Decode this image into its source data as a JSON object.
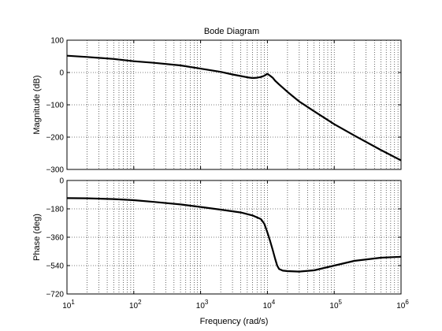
{
  "chart_data": {
    "type": "line",
    "title": "Bode Diagram",
    "xlabel": "Frequency  (rad/s)",
    "xscale": "log",
    "xlim": [
      10,
      1000000
    ],
    "x_ticks": [
      {
        "value": 10,
        "base": "10",
        "exp": "1"
      },
      {
        "value": 100,
        "base": "10",
        "exp": "2"
      },
      {
        "value": 1000,
        "base": "10",
        "exp": "3"
      },
      {
        "value": 10000,
        "base": "10",
        "exp": "4"
      },
      {
        "value": 100000,
        "base": "10",
        "exp": "5"
      },
      {
        "value": 1000000,
        "base": "10",
        "exp": "6"
      }
    ],
    "grid": true,
    "line_color": "#000000",
    "panels": [
      {
        "name": "magnitude",
        "ylabel": "Magnitude (dB)",
        "ylim": [
          -300,
          100
        ],
        "y_ticks": [
          100,
          0,
          -100,
          -200,
          -300
        ],
        "y_tick_labels": [
          "100",
          "0",
          "−100",
          "−200",
          "−300"
        ],
        "x": [
          10,
          20,
          50,
          100,
          200,
          500,
          1000,
          2000,
          3000,
          4000,
          5000,
          6000,
          7000,
          8000,
          9000,
          10000,
          11000,
          12000,
          13000,
          15000,
          20000,
          30000,
          50000,
          100000,
          200000,
          500000,
          1000000
        ],
        "y": [
          52,
          48,
          42,
          35,
          30,
          22,
          12,
          2,
          -6,
          -11,
          -15,
          -17,
          -16,
          -14,
          -10,
          -4,
          -10,
          -16,
          -25,
          -37,
          -60,
          -90,
          -120,
          -160,
          -195,
          -240,
          -272
        ]
      },
      {
        "name": "phase",
        "ylabel": "Phase (deg)",
        "ylim": [
          -720,
          0
        ],
        "y_ticks": [
          0,
          -180,
          -360,
          -540,
          -720
        ],
        "y_tick_labels": [
          "0",
          "−180",
          "−360",
          "−540",
          "−720"
        ],
        "x": [
          10,
          20,
          50,
          100,
          200,
          500,
          1000,
          2000,
          4000,
          6000,
          8000,
          9000,
          10000,
          11000,
          12000,
          13000,
          14000,
          15000,
          17000,
          20000,
          30000,
          50000,
          100000,
          200000,
          500000,
          1000000
        ],
        "y": [
          -112,
          -113,
          -118,
          -125,
          -136,
          -152,
          -168,
          -185,
          -203,
          -222,
          -245,
          -275,
          -330,
          -385,
          -440,
          -495,
          -540,
          -562,
          -572,
          -575,
          -578,
          -570,
          -540,
          -510,
          -490,
          -484
        ]
      }
    ]
  }
}
